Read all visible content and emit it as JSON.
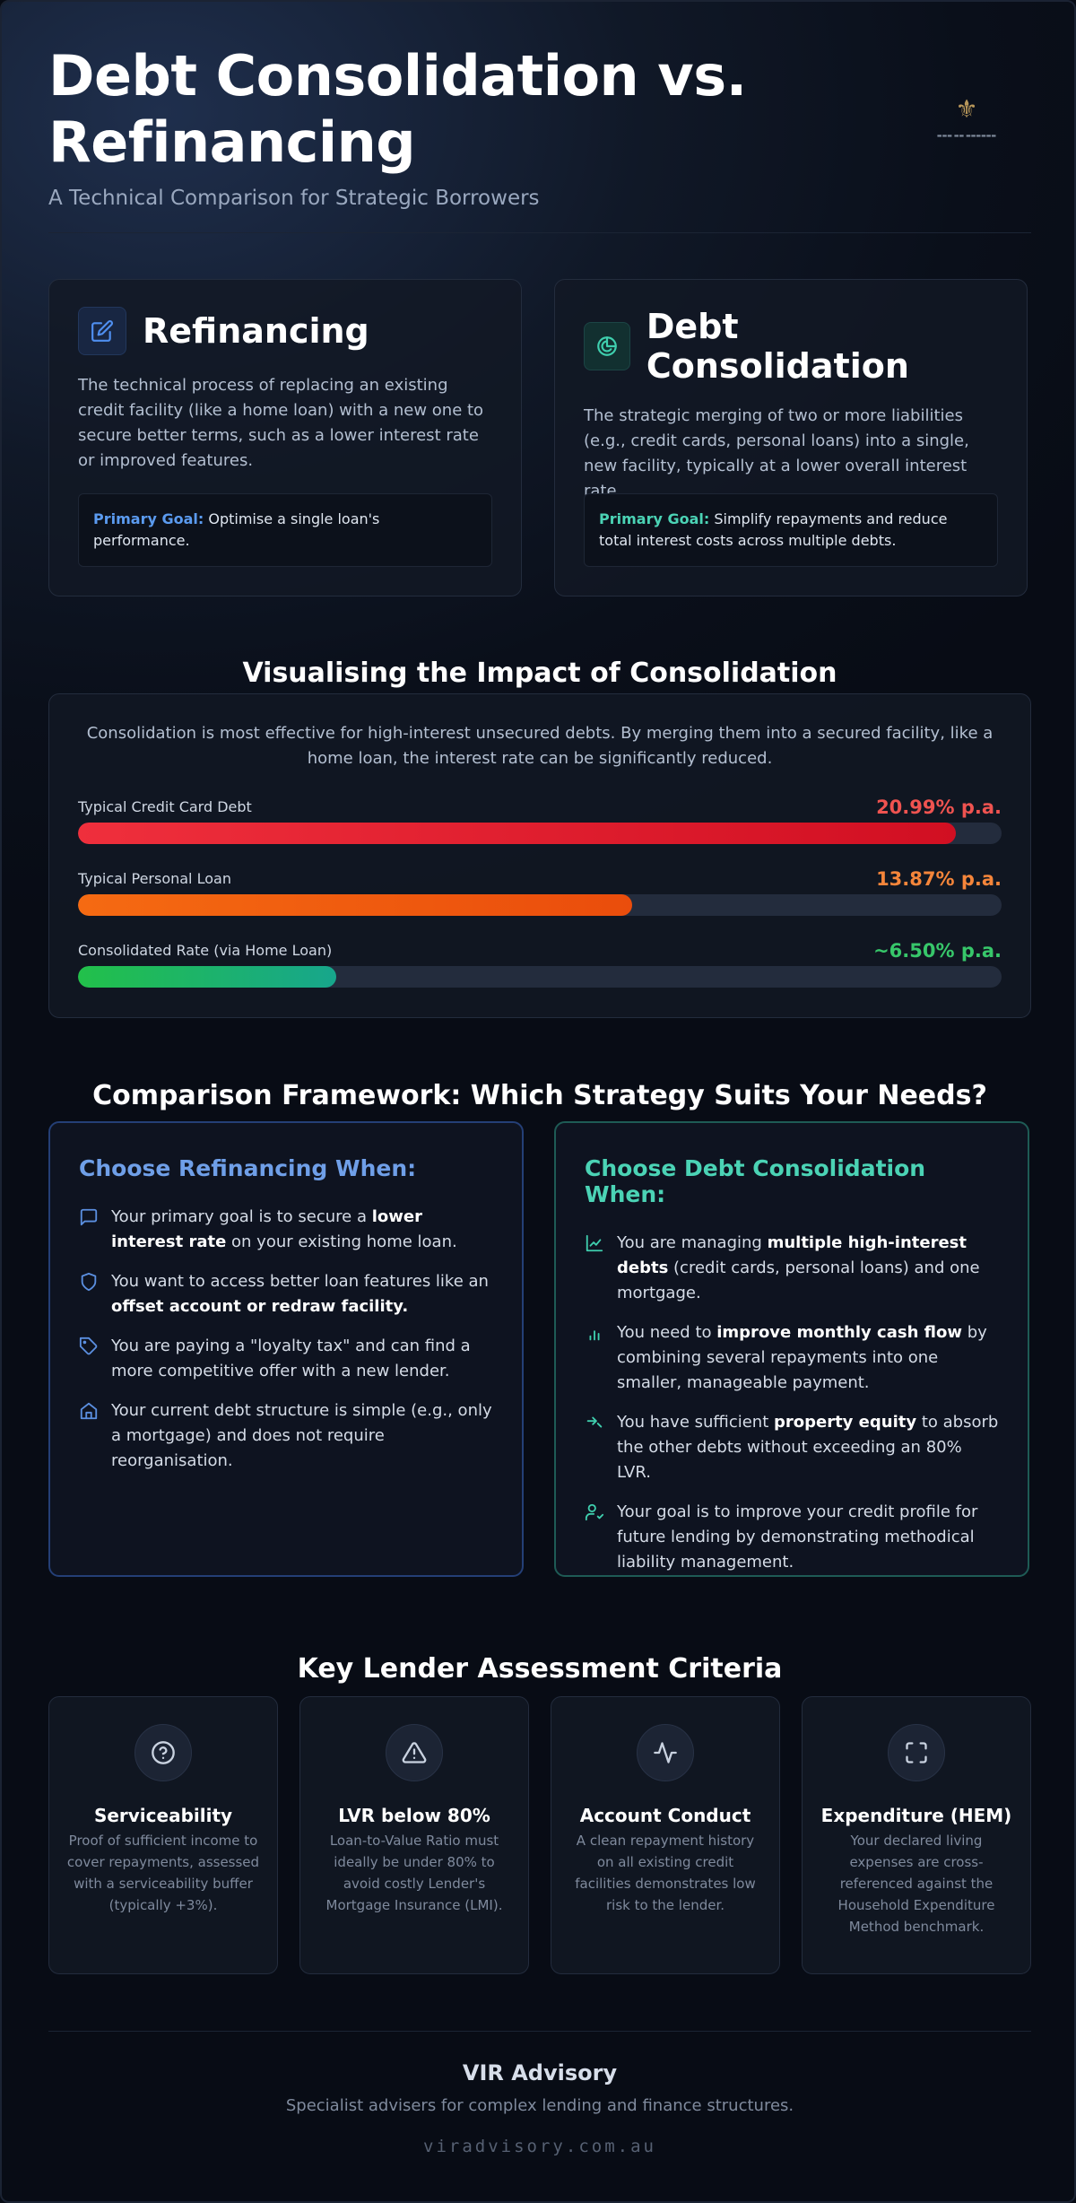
{
  "header": {
    "title": "Debt Consolidation vs. Refinancing",
    "subtitle": "A Technical Comparison for Strategic Borrowers"
  },
  "definitions": {
    "refinancing": {
      "title": "Refinancing",
      "icon": "edit-icon",
      "text": "The technical process of replacing an existing credit facility (like a home loan) with a new one to secure better terms, such as a lower interest rate or improved features.",
      "goal_label": "Primary Goal:",
      "goal_text": "Optimise a single loan's performance."
    },
    "consolidation": {
      "title": "Debt Consolidation",
      "icon": "pie-chart-icon",
      "text": "The strategic merging of two or more liabilities (e.g., credit cards, personal loans) into a single, new facility, typically at a lower overall interest rate.",
      "goal_label": "Primary Goal:",
      "goal_text": "Simplify repayments and reduce total interest costs across multiple debts."
    }
  },
  "impact": {
    "title": "Visualising the Impact of Consolidation",
    "intro": "Consolidation is most effective for high-interest unsecured debts. By merging them into a secured facility, like a home loan, the interest rate can be significantly reduced.",
    "bars": [
      {
        "label": "Typical Credit Card Debt",
        "value_text": "20.99% p.a.",
        "fill_fraction": 0.95,
        "color": "#ef4444"
      },
      {
        "label": "Typical Personal Loan",
        "value_text": "13.87% p.a.",
        "fill_fraction": 0.6,
        "color": "#f97316"
      },
      {
        "label": "Consolidated Rate (via Home Loan)",
        "value_text": "~6.50% p.a.",
        "fill_fraction": 0.28,
        "color": "#22c55e"
      }
    ]
  },
  "framework": {
    "title": "Comparison Framework: Which Strategy Suits Your Needs?",
    "refinancing": {
      "title": "Choose Refinancing When:",
      "items": [
        {
          "icon": "message-icon",
          "pre": "Your primary goal is to secure a ",
          "bold": "lower interest rate",
          "post": " on your existing home loan."
        },
        {
          "icon": "shield-icon",
          "pre": "You want to access better loan features like an ",
          "bold": "offset account or redraw facility.",
          "post": ""
        },
        {
          "icon": "tag-icon",
          "pre": "You are paying a \"loyalty tax\" and can find a more competitive offer with a new lender.",
          "bold": "",
          "post": ""
        },
        {
          "icon": "home-icon",
          "pre": "Your current debt structure is simple (e.g., only a mortgage) and does not require reorganisation.",
          "bold": "",
          "post": ""
        }
      ]
    },
    "consolidation": {
      "title": "Choose Debt Consolidation When:",
      "items": [
        {
          "icon": "chart-line-icon",
          "pre": "You are managing ",
          "bold": "multiple high-interest debts",
          "post": " (credit cards, personal loans) and one mortgage."
        },
        {
          "icon": "bar-chart-icon",
          "pre": "You need to ",
          "bold": "improve monthly cash flow",
          "post": " by combining several repayments into one smaller, manageable payment."
        },
        {
          "icon": "trend-icon",
          "pre": "You have sufficient ",
          "bold": "property equity",
          "post": " to absorb the other debts without exceeding an 80% LVR."
        },
        {
          "icon": "user-check-icon",
          "pre": "Your goal is to improve your credit profile for future lending by demonstrating methodical liability management.",
          "bold": "",
          "post": ""
        }
      ]
    }
  },
  "criteria": {
    "title": "Key Lender Assessment Criteria",
    "items": [
      {
        "icon": "help-circle-icon",
        "title": "Serviceability",
        "text": "Proof of sufficient income to cover repayments, assessed with a serviceability buffer (typically +3%)."
      },
      {
        "icon": "warning-icon",
        "title": "LVR below 80%",
        "text": "Loan-to-Value Ratio must ideally be under 80% to avoid costly Lender's Mortgage Insurance (LMI)."
      },
      {
        "icon": "activity-icon",
        "title": "Account Conduct",
        "text": "A clean repayment history on all existing credit facilities demonstrates low risk to the lender."
      },
      {
        "icon": "scan-icon",
        "title": "Expenditure (HEM)",
        "text": "Your declared living expenses are cross-referenced against the Household Expenditure Method benchmark."
      }
    ]
  },
  "footer": {
    "title": "VIR Advisory",
    "subtitle": "Specialist advisers for complex lending and finance structures.",
    "url": "viradvisory.com.au"
  }
}
